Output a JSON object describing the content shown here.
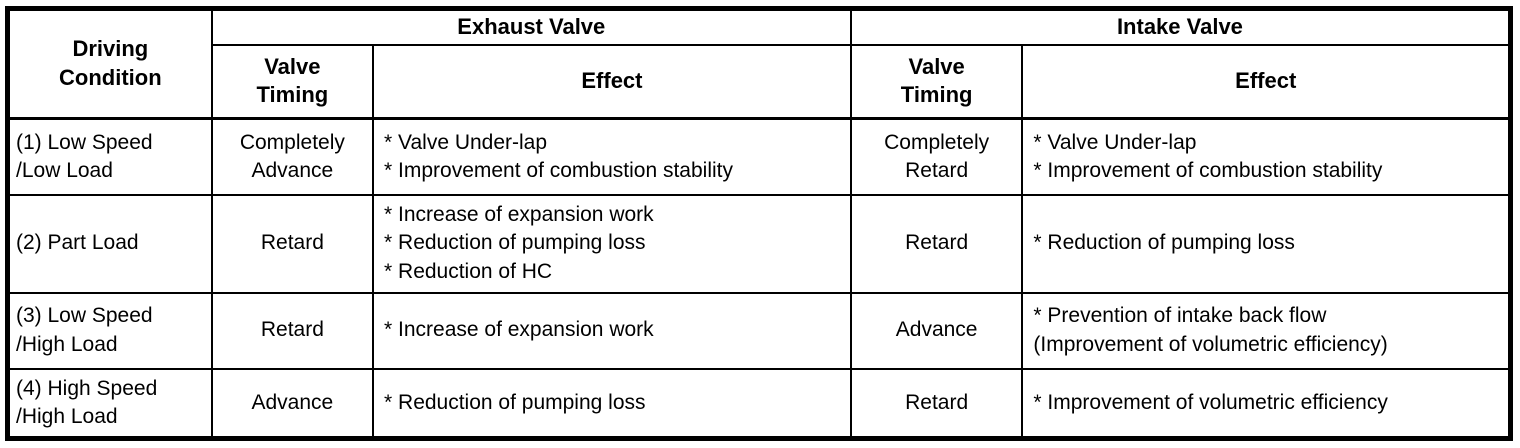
{
  "colors": {
    "border": "#000000",
    "text": "#000000",
    "background": "#ffffff"
  },
  "table": {
    "header": {
      "driving_condition": "Driving\nCondition",
      "exhaust_group": "Exhaust Valve",
      "intake_group": "Intake Valve",
      "exhaust_valve_timing": "Valve\nTiming",
      "exhaust_effect": "Effect",
      "intake_valve_timing": "Valve\nTiming",
      "intake_effect": "Effect"
    },
    "rows": [
      {
        "condition": "(1) Low Speed\n/Low Load",
        "exhaust_timing": "Completely\nAdvance",
        "exhaust_effect": "* Valve Under-lap\n* Improvement of combustion stability",
        "intake_timing": "Completely\nRetard",
        "intake_effect": "* Valve Under-lap\n* Improvement of combustion stability"
      },
      {
        "condition": "(2) Part Load",
        "exhaust_timing": "Retard",
        "exhaust_effect": "* Increase of expansion work\n* Reduction of pumping loss\n* Reduction of HC",
        "intake_timing": "Retard",
        "intake_effect": "* Reduction of pumping loss"
      },
      {
        "condition": "(3) Low Speed\n/High Load",
        "exhaust_timing": "Retard",
        "exhaust_effect": "* Increase of expansion work",
        "intake_timing": "Advance",
        "intake_effect": "* Prevention of intake back flow\n(Improvement of volumetric efficiency)"
      },
      {
        "condition": "(4) High Speed\n/High Load",
        "exhaust_timing": "Advance",
        "exhaust_effect": "* Reduction of pumping loss",
        "intake_timing": "Retard",
        "intake_effect": "* Improvement of volumetric efficiency"
      }
    ]
  }
}
